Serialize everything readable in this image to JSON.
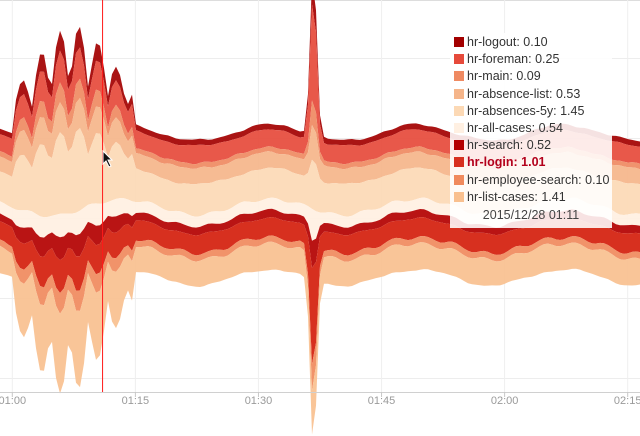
{
  "chart_data": {
    "type": "area",
    "stacked": true,
    "title": "",
    "xlabel": "",
    "ylabel": "",
    "x_ticks": [
      "01:00",
      "01:15",
      "01:30",
      "01:45",
      "02:00",
      "02:15"
    ],
    "x_range_minutes": [
      -1.5,
      76.5
    ],
    "hover_time": "2015/12/28 01:11",
    "hover_minute": 11,
    "highlighted_series": "hr-login",
    "series": [
      {
        "name": "hr-logout",
        "value": "0.10",
        "color": "#a30000"
      },
      {
        "name": "hr-foreman",
        "value": "0.25",
        "color": "#e64a3b"
      },
      {
        "name": "hr-main",
        "value": "0.09",
        "color": "#ef8a62"
      },
      {
        "name": "hr-absence-list",
        "value": "0.53",
        "color": "#f5b58a"
      },
      {
        "name": "hr-absences-5y",
        "value": "1.45",
        "color": "#fcd9b5"
      },
      {
        "name": "hr-all-cases",
        "value": "0.54",
        "color": "#fff0e2"
      },
      {
        "name": "hr-search",
        "value": "0.52",
        "color": "#b30000"
      },
      {
        "name": "hr-login",
        "value": "1.01",
        "color": "#d7301f"
      },
      {
        "name": "hr-employee-search",
        "value": "0.10",
        "color": "#f08a5d"
      },
      {
        "name": "hr-list-cases",
        "value": "1.41",
        "color": "#f9c08f"
      }
    ]
  }
}
